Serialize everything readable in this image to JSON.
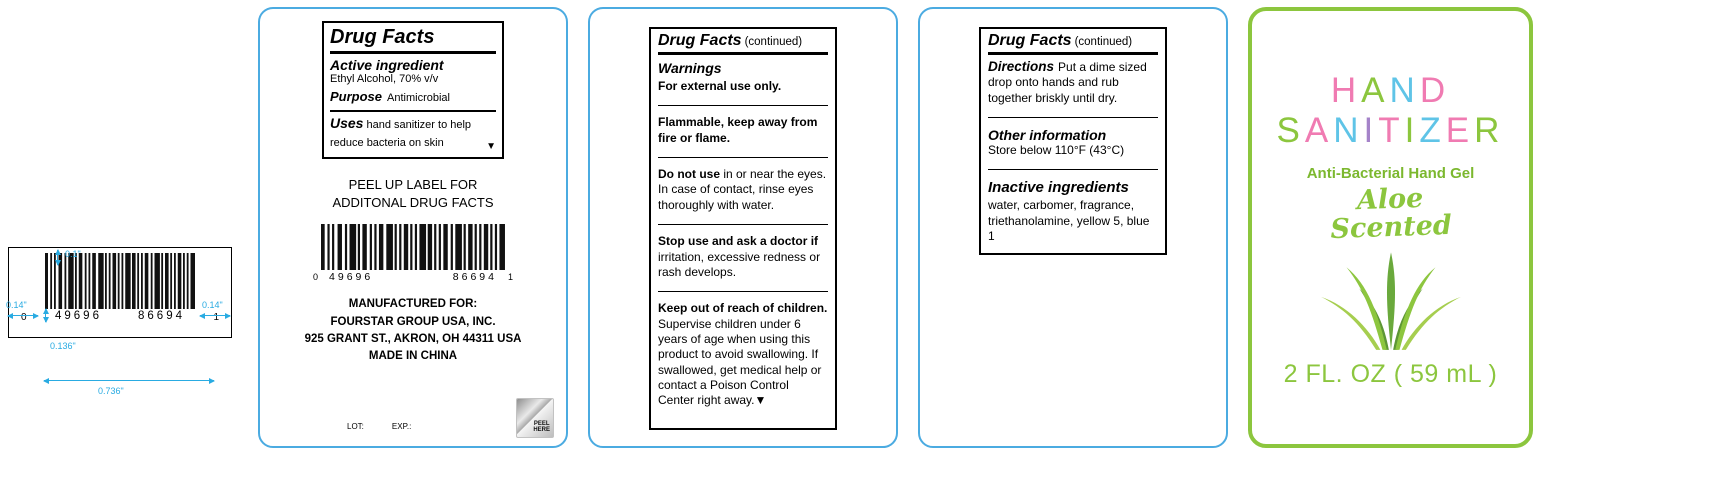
{
  "colors": {
    "panel_border_blue": "#4babe1",
    "panel_border_green": "#8cc63e",
    "dimension_blue": "#29abe2",
    "brand_green": "#8cc63e"
  },
  "barcode_figure": {
    "digit_left": "0",
    "digit_group1": "49696",
    "digit_group2": "86694",
    "digit_right": "1",
    "dim_top": "0.1\"",
    "dim_left": "0.14\"",
    "dim_right": "0.14\"",
    "dim_digits": "0.136\"",
    "dim_width": "0.736\""
  },
  "front_label": {
    "drug_facts": {
      "title": "Drug Facts",
      "active_heading": "Active ingredient",
      "active_value": "Ethyl Alcohol, 70% v/v",
      "purpose_heading": "Purpose",
      "purpose_value": "Antimicrobial",
      "uses_heading": "Uses",
      "uses_text": "hand sanitizer to help reduce bacteria on skin",
      "expand_arrow": "▼"
    },
    "peel_note_line1": "PEEL UP LABEL FOR",
    "peel_note_line2": "ADDITONAL DRUG FACTS",
    "barcode": {
      "digit_left": "0",
      "digit_group1": "49696",
      "digit_group2": "86694",
      "digit_right": "1"
    },
    "manufacturer_line1": "MANUFACTURED FOR:",
    "manufacturer_line2": "FOURSTAR GROUP USA, INC.",
    "manufacturer_line3": "925 GRANT ST., AKRON, OH 44311 USA",
    "manufacturer_line4": "MADE IN CHINA",
    "lot_label": "LOT:",
    "exp_label": "EXP.:",
    "peel_here_line1": "PEEL",
    "peel_here_line2": "HERE"
  },
  "warnings_label": {
    "title": "Drug Facts",
    "title_continued": "(continued)",
    "warnings_heading": "Warnings",
    "external_use": "For external use only.",
    "flammable": "Flammable, keep away from fire or flame.",
    "do_not_use_bold": "Do not use",
    "do_not_use_text": " in or near the eyes. In case of contact, rinse eyes thoroughly with water.",
    "stop_use_bold": "Stop use and ask a doctor if",
    "stop_use_text": " irritation, excessive redness or rash develops.",
    "keep_out_bold": "Keep out of reach of children.",
    "keep_out_text": " Supervise children under 6 years of age when using this product to avoid swallowing. If swallowed, get medical help or contact a Poison Control Center right away.",
    "expand_arrow": "▼"
  },
  "directions_label": {
    "title": "Drug Facts",
    "title_continued": "(continued)",
    "directions_heading": "Directions",
    "directions_text": "Put a dime sized drop onto hands and rub together briskly until dry.",
    "other_info_heading": "Other information",
    "other_info_text": "Store below 110°F (43°C)",
    "inactive_heading": "Inactive ingredients",
    "inactive_text": "water, carbomer, fragrance, triethanolamine, yellow 5, blue 1"
  },
  "front_panel": {
    "brand_line1_letters": [
      {
        "ch": "H",
        "c": "#f07bb2"
      },
      {
        "ch": "A",
        "c": "#8cc63e"
      },
      {
        "ch": "N",
        "c": "#5fc4e7"
      },
      {
        "ch": "D",
        "c": "#f07bb2"
      }
    ],
    "brand_line2_letters": [
      {
        "ch": "S",
        "c": "#8cc63e"
      },
      {
        "ch": "A",
        "c": "#f07bb2"
      },
      {
        "ch": "N",
        "c": "#5fc4e7"
      },
      {
        "ch": "I",
        "c": "#a583c9"
      },
      {
        "ch": "T",
        "c": "#f07bb2"
      },
      {
        "ch": "I",
        "c": "#8cc63e"
      },
      {
        "ch": "Z",
        "c": "#5fc4e7"
      },
      {
        "ch": "E",
        "c": "#f07bb2"
      },
      {
        "ch": "R",
        "c": "#8cc63e"
      }
    ],
    "subtitle": "Anti-Bacterial Hand Gel",
    "scent_line1": "Aloe",
    "scent_line2": "Scented",
    "size_text": "2 FL. OZ ( 59 mL )"
  }
}
